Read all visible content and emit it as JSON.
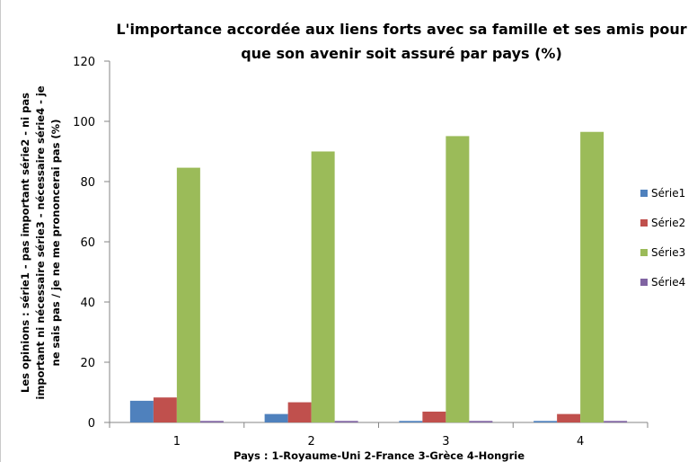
{
  "chart_data": {
    "type": "bar",
    "title": [
      "L'importance accordée aux liens forts avec sa famille et ses amis pour",
      "que son avenir soit assuré par pays (%)"
    ],
    "xlabel": "Pays : 1-Royaume-Uni  2-France   3-Grèce 4-Hongrie",
    "ylabel": [
      "Les opinions : série1 - pas important série2 - ni pas",
      "important ni nécessaire série3 - nécessaire série4 - je",
      "ne sais pas   / je ne me prononcerai pas  (%)"
    ],
    "categories": [
      "1",
      "2",
      "3",
      "4"
    ],
    "ylim": [
      0,
      120
    ],
    "yticks": [
      0,
      20,
      40,
      60,
      80,
      100,
      120
    ],
    "grid": false,
    "legend_position": "right",
    "series": [
      {
        "name": "Série1",
        "color": "#4f81bd",
        "values": [
          7.2,
          2.8,
          0.5,
          0.5
        ]
      },
      {
        "name": "Série2",
        "color": "#c0504d",
        "values": [
          8.3,
          6.7,
          3.6,
          2.8
        ]
      },
      {
        "name": "Série3",
        "color": "#9bbb59",
        "values": [
          84.6,
          90.0,
          95.1,
          96.5
        ]
      },
      {
        "name": "Série4",
        "color": "#8064a2",
        "values": [
          0.5,
          0.5,
          0.5,
          0.5
        ]
      }
    ]
  }
}
